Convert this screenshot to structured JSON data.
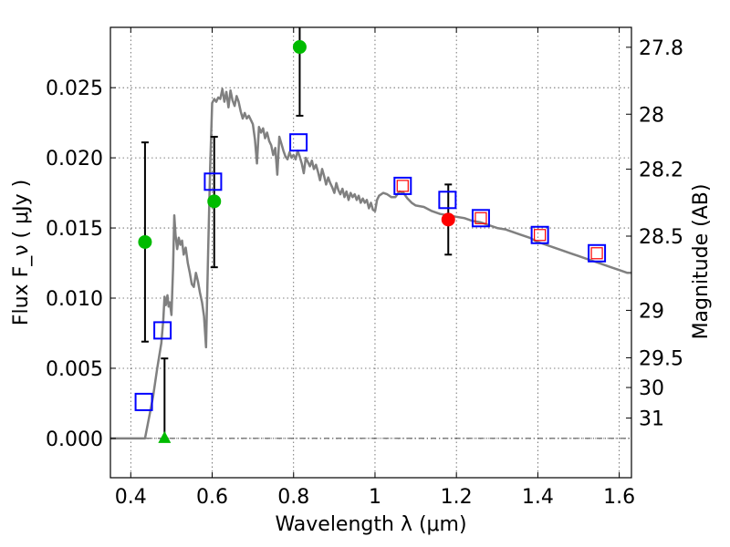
{
  "chart_data": {
    "type": "scatter",
    "xlabel": "Wavelength  λ (μm)",
    "ylabel": "Flux  F_ν  ( μJy )",
    "ylabel_right": "Magnitude (AB)",
    "xlim": [
      0.35,
      1.63
    ],
    "ylim": [
      -0.0028,
      0.0293
    ],
    "grid": true,
    "x_ticks": [
      {
        "value": 0.4,
        "label": "0.4"
      },
      {
        "value": 0.6,
        "label": "0.6"
      },
      {
        "value": 0.8,
        "label": "0.8"
      },
      {
        "value": 1.0,
        "label": "1"
      },
      {
        "value": 1.2,
        "label": "1.2"
      },
      {
        "value": 1.4,
        "label": "1.4"
      },
      {
        "value": 1.6,
        "label": "1.6"
      }
    ],
    "y_ticks": [
      {
        "value": 0.0,
        "label": "0.000"
      },
      {
        "value": 0.005,
        "label": "0.005"
      },
      {
        "value": 0.01,
        "label": "0.010"
      },
      {
        "value": 0.015,
        "label": "0.015"
      },
      {
        "value": 0.02,
        "label": "0.020"
      },
      {
        "value": 0.025,
        "label": "0.025"
      }
    ],
    "right_ticks": [
      {
        "flux": 0.02788,
        "label": "27.8"
      },
      {
        "flux": 0.02311,
        "label": "28"
      },
      {
        "flux": 0.01919,
        "label": "28.2"
      },
      {
        "flux": 0.01442,
        "label": "28.5"
      },
      {
        "flux": 0.00913,
        "label": "29"
      },
      {
        "flux": 0.00575,
        "label": "29.5"
      },
      {
        "flux": 0.00363,
        "label": "30"
      },
      {
        "flux": 0.00145,
        "label": "31"
      }
    ],
    "series": [
      {
        "kind": "line",
        "color": "#808080",
        "points": [
          [
            0.35,
            0.0
          ],
          [
            0.425,
            0.0
          ],
          [
            0.435,
            0.0
          ],
          [
            0.445,
            0.0015
          ],
          [
            0.455,
            0.003
          ],
          [
            0.465,
            0.005
          ],
          [
            0.475,
            0.0068
          ],
          [
            0.48,
            0.0085
          ],
          [
            0.483,
            0.0101
          ],
          [
            0.486,
            0.0095
          ],
          [
            0.49,
            0.0102
          ],
          [
            0.493,
            0.0094
          ],
          [
            0.496,
            0.0097
          ],
          [
            0.5,
            0.0088
          ],
          [
            0.504,
            0.0122
          ],
          [
            0.507,
            0.0159
          ],
          [
            0.51,
            0.0145
          ],
          [
            0.514,
            0.0135
          ],
          [
            0.518,
            0.0143
          ],
          [
            0.522,
            0.0138
          ],
          [
            0.526,
            0.0141
          ],
          [
            0.53,
            0.0131
          ],
          [
            0.535,
            0.0136
          ],
          [
            0.54,
            0.0125
          ],
          [
            0.545,
            0.0118
          ],
          [
            0.55,
            0.011
          ],
          [
            0.555,
            0.0108
          ],
          [
            0.56,
            0.0118
          ],
          [
            0.565,
            0.0112
          ],
          [
            0.57,
            0.0104
          ],
          [
            0.575,
            0.0097
          ],
          [
            0.58,
            0.0087
          ],
          [
            0.585,
            0.0065
          ],
          [
            0.59,
            0.0133
          ],
          [
            0.595,
            0.0193
          ],
          [
            0.6,
            0.0239
          ],
          [
            0.605,
            0.0242
          ],
          [
            0.61,
            0.024
          ],
          [
            0.615,
            0.0243
          ],
          [
            0.62,
            0.0242
          ],
          [
            0.625,
            0.0249
          ],
          [
            0.63,
            0.024
          ],
          [
            0.635,
            0.0247
          ],
          [
            0.64,
            0.0236
          ],
          [
            0.645,
            0.0248
          ],
          [
            0.65,
            0.0241
          ],
          [
            0.655,
            0.0237
          ],
          [
            0.66,
            0.0244
          ],
          [
            0.665,
            0.024
          ],
          [
            0.67,
            0.0233
          ],
          [
            0.675,
            0.0228
          ],
          [
            0.68,
            0.0232
          ],
          [
            0.685,
            0.0228
          ],
          [
            0.69,
            0.023
          ],
          [
            0.695,
            0.0227
          ],
          [
            0.7,
            0.0224
          ],
          [
            0.705,
            0.0213
          ],
          [
            0.71,
            0.0196
          ],
          [
            0.715,
            0.0222
          ],
          [
            0.72,
            0.0218
          ],
          [
            0.725,
            0.0221
          ],
          [
            0.73,
            0.0214
          ],
          [
            0.735,
            0.0218
          ],
          [
            0.74,
            0.0212
          ],
          [
            0.745,
            0.0209
          ],
          [
            0.75,
            0.0202
          ],
          [
            0.755,
            0.0207
          ],
          [
            0.76,
            0.0188
          ],
          [
            0.765,
            0.0215
          ],
          [
            0.77,
            0.021
          ],
          [
            0.775,
            0.0205
          ],
          [
            0.78,
            0.0201
          ],
          [
            0.785,
            0.0199
          ],
          [
            0.79,
            0.0204
          ],
          [
            0.795,
            0.02
          ],
          [
            0.8,
            0.0202
          ],
          [
            0.805,
            0.0199
          ],
          [
            0.81,
            0.0205
          ],
          [
            0.815,
            0.0201
          ],
          [
            0.82,
            0.0196
          ],
          [
            0.825,
            0.0189
          ],
          [
            0.83,
            0.02
          ],
          [
            0.835,
            0.0197
          ],
          [
            0.84,
            0.0194
          ],
          [
            0.845,
            0.0198
          ],
          [
            0.85,
            0.0192
          ],
          [
            0.855,
            0.0195
          ],
          [
            0.86,
            0.019
          ],
          [
            0.865,
            0.0184
          ],
          [
            0.87,
            0.0192
          ],
          [
            0.875,
            0.0187
          ],
          [
            0.88,
            0.0181
          ],
          [
            0.885,
            0.0186
          ],
          [
            0.89,
            0.0182
          ],
          [
            0.895,
            0.0179
          ],
          [
            0.9,
            0.0175
          ],
          [
            0.905,
            0.0182
          ],
          [
            0.91,
            0.0177
          ],
          [
            0.915,
            0.0174
          ],
          [
            0.92,
            0.0178
          ],
          [
            0.925,
            0.0172
          ],
          [
            0.93,
            0.0176
          ],
          [
            0.935,
            0.017
          ],
          [
            0.94,
            0.0175
          ],
          [
            0.945,
            0.0172
          ],
          [
            0.95,
            0.0174
          ],
          [
            0.955,
            0.017
          ],
          [
            0.96,
            0.0173
          ],
          [
            0.965,
            0.0168
          ],
          [
            0.97,
            0.0171
          ],
          [
            0.975,
            0.0168
          ],
          [
            0.98,
            0.017
          ],
          [
            0.985,
            0.0164
          ],
          [
            0.99,
            0.0168
          ],
          [
            0.995,
            0.0163
          ],
          [
            1.0,
            0.0162
          ],
          [
            1.005,
            0.017
          ],
          [
            1.01,
            0.0173
          ],
          [
            1.02,
            0.0175
          ],
          [
            1.03,
            0.0174
          ],
          [
            1.04,
            0.0172
          ],
          [
            1.05,
            0.0172
          ],
          [
            1.06,
            0.0176
          ],
          [
            1.07,
            0.0175
          ],
          [
            1.08,
            0.0171
          ],
          [
            1.09,
            0.0168
          ],
          [
            1.1,
            0.0166
          ],
          [
            1.12,
            0.0165
          ],
          [
            1.14,
            0.0162
          ],
          [
            1.16,
            0.016
          ],
          [
            1.18,
            0.0159
          ],
          [
            1.2,
            0.0158
          ],
          [
            1.22,
            0.0157
          ],
          [
            1.24,
            0.0155
          ],
          [
            1.26,
            0.0154
          ],
          [
            1.28,
            0.0152
          ],
          [
            1.3,
            0.015
          ],
          [
            1.32,
            0.0149
          ],
          [
            1.34,
            0.0147
          ],
          [
            1.36,
            0.0145
          ],
          [
            1.38,
            0.0143
          ],
          [
            1.4,
            0.014
          ],
          [
            1.42,
            0.0138
          ],
          [
            1.44,
            0.0136
          ],
          [
            1.46,
            0.0134
          ],
          [
            1.48,
            0.0132
          ],
          [
            1.5,
            0.013
          ],
          [
            1.52,
            0.0128
          ],
          [
            1.54,
            0.0126
          ],
          [
            1.56,
            0.0124
          ],
          [
            1.58,
            0.0122
          ],
          [
            1.6,
            0.012
          ],
          [
            1.62,
            0.0118
          ],
          [
            1.63,
            0.0118
          ]
        ]
      },
      {
        "kind": "model_squares",
        "color": "#0000ff",
        "points": [
          [
            0.432,
            0.0026
          ],
          [
            0.478,
            0.0077
          ],
          [
            0.602,
            0.0183
          ],
          [
            0.812,
            0.0211
          ],
          [
            1.068,
            0.018
          ],
          [
            1.178,
            0.017
          ],
          [
            1.26,
            0.0157
          ],
          [
            1.405,
            0.0145
          ],
          [
            1.545,
            0.0132
          ]
        ]
      },
      {
        "kind": "inner_squares",
        "color": "#ff0000",
        "points": [
          [
            1.068,
            0.018
          ],
          [
            1.26,
            0.0157
          ],
          [
            1.405,
            0.0145
          ],
          [
            1.545,
            0.0132
          ]
        ]
      },
      {
        "kind": "detections",
        "color": "#00bb00",
        "points": [
          {
            "x": 0.435,
            "y": 0.014,
            "lo": 0.0069,
            "hi": 0.0211
          },
          {
            "x": 0.605,
            "y": 0.0169,
            "lo": 0.0122,
            "hi": 0.0215
          },
          {
            "x": 0.815,
            "y": 0.0279,
            "lo": 0.023,
            "hi": 0.034
          }
        ]
      },
      {
        "kind": "upper_limit",
        "color": "#00bb00",
        "points": [
          {
            "x": 0.483,
            "y": -0.0002,
            "lo": 0.0,
            "hi": 0.0057
          }
        ]
      },
      {
        "kind": "red_point",
        "color": "#ff0000",
        "points": [
          {
            "x": 1.18,
            "y": 0.0156,
            "lo": 0.0131,
            "hi": 0.0181
          }
        ]
      }
    ]
  }
}
